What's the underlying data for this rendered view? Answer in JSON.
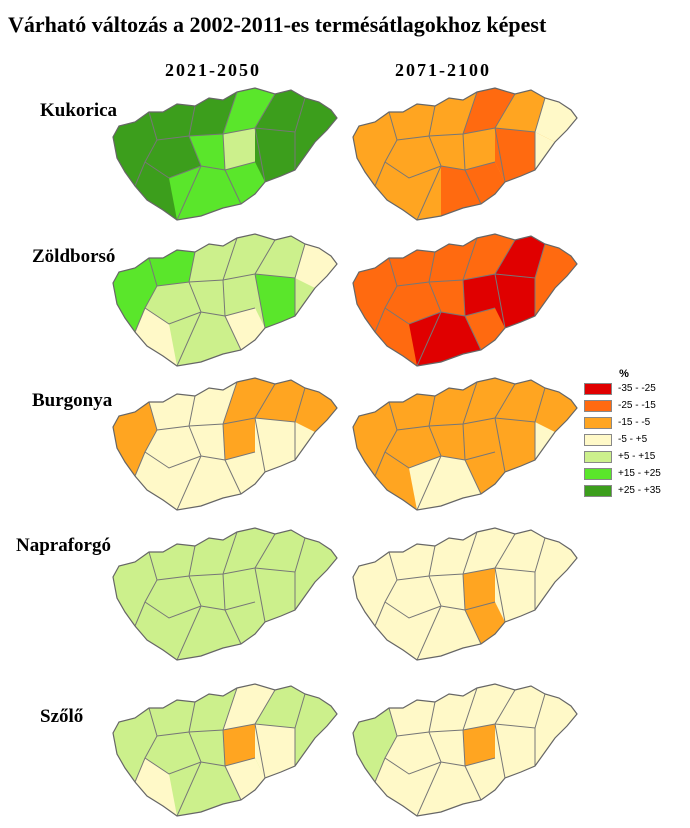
{
  "title": "Várható változás a 2002-2011-es termésátlagokhoz képest",
  "periods": [
    "2021-2050",
    "2071-2100"
  ],
  "crops": [
    {
      "name": "Kukorica",
      "maps": [
        {
          "base": "+25 - +35",
          "regions": {
            "c1": "+15 - +25",
            "c2": "+15 - +25",
            "c3": "+15 - +25",
            "c4": "+15 - +25",
            "c5": "+15 - +25",
            "c6": "+5 - +15"
          }
        },
        {
          "base": "-15 - -5",
          "regions": {
            "c2": "-25 - -15",
            "c3": "-25 - -15",
            "c4": "-25 - -15",
            "c7": "-25 - -15",
            "c8": "-5 - +5",
            "c9": "-5 - +5"
          }
        }
      ]
    },
    {
      "name": "Zöldborsó",
      "maps": [
        {
          "base": "+5 - +15",
          "regions": {
            "c10": "+15 - +25",
            "c11": "+15 - +25",
            "c12": "+15 - +25",
            "c8": "-5 - +5",
            "c3": "-5 - +5",
            "c13": "-5 - +5"
          }
        },
        {
          "base": "-25 - -15",
          "regions": {
            "c6": "-35 - -25",
            "c14": "-35 - -25",
            "c4": "-35 - -25",
            "c5": "-35 - -25",
            "c7": "-35 - -25"
          }
        }
      ]
    },
    {
      "name": "Burgonya",
      "maps": [
        {
          "base": "-5 - +5",
          "regions": {
            "c10": "-15 - -5",
            "c6": "-15 - -5",
            "c14": "-15 - -5",
            "c8": "-15 - -5",
            "c2": "-15 - -5"
          }
        },
        {
          "base": "-15 - -5",
          "regions": {
            "c9": "-5 - +5",
            "c4": "-5 - +5",
            "c5": "-5 - +5"
          }
        }
      ]
    },
    {
      "name": "Napraforgó",
      "maps": [
        {
          "base": "+5 - +15",
          "regions": {}
        },
        {
          "base": "-5 - +5",
          "regions": {
            "c6": "-15 - -5",
            "c3": "-15 - -5"
          }
        }
      ]
    },
    {
      "name": "Szőlő",
      "maps": [
        {
          "base": "+5 - +15",
          "regions": {
            "c6": "-15 - -5",
            "c2": "-5 - +5",
            "c3": "-5 - +5",
            "c7": "-5 - +5",
            "c13": "-5 - +5"
          }
        },
        {
          "base": "-5 - +5",
          "regions": {
            "c6": "-15 - -5",
            "c10": "+5 - +15"
          }
        }
      ]
    }
  ],
  "legend": {
    "title": "%",
    "classes": [
      {
        "label": "-35 - -25",
        "color": "#e00000"
      },
      {
        "label": "-25 - -15",
        "color": "#ff6a10"
      },
      {
        "label": "-15 - -5",
        "color": "#ffa521"
      },
      {
        "label": "-5 - +5",
        "color": "#fff9c8"
      },
      {
        "label": "+5 - +15",
        "color": "#ccf08c"
      },
      {
        "label": "+15 - +25",
        "color": "#5ae62b"
      },
      {
        "label": "+25 - +35",
        "color": "#3c9e1c"
      }
    ]
  }
}
